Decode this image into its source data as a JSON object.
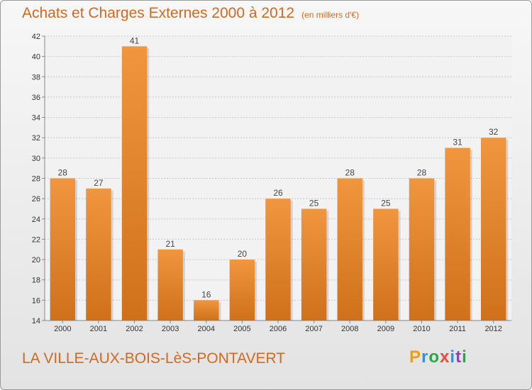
{
  "header": {
    "title": "Achats et Charges Externes 2000 à 2012",
    "subtitle": "(en milliers d'€)"
  },
  "footer": {
    "town": "LA VILLE-AUX-BOIS-LèS-PONTAVERT",
    "logo": "Proxiti",
    "logo_colors": [
      "#f39c12",
      "#3a8fd8",
      "#27a844",
      "#e74c3c",
      "#3a8fd8",
      "#8e44ad",
      "#27a844"
    ]
  },
  "colors": {
    "bar": "#f0963f",
    "bar_dark": "#d0701b",
    "accent": "#d2691e"
  },
  "chart_data": {
    "type": "bar",
    "title": "Achats et Charges Externes 2000 à 2012",
    "subtitle": "(en milliers d'€)",
    "categories": [
      "2000",
      "2001",
      "2002",
      "2003",
      "2004",
      "2005",
      "2006",
      "2007",
      "2008",
      "2009",
      "2010",
      "2011",
      "2012"
    ],
    "values": [
      28,
      27,
      41,
      21,
      16,
      20,
      26,
      25,
      28,
      25,
      28,
      31,
      32
    ],
    "ylim": [
      14,
      42
    ],
    "yticks": [
      14,
      16,
      18,
      20,
      22,
      24,
      26,
      28,
      30,
      32,
      34,
      36,
      38,
      40,
      42
    ],
    "grid": true,
    "xlabel": "",
    "ylabel": ""
  }
}
